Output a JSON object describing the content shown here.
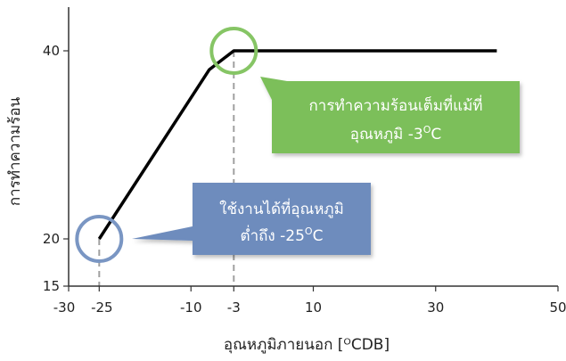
{
  "chart_data": {
    "type": "line",
    "title": "",
    "xlabel": "อุณหภูมิภายนอก [ᴼCDB]",
    "ylabel": "การทำความร้อน",
    "xlim": [
      -30,
      50
    ],
    "ylim": [
      15,
      45
    ],
    "x_ticks": [
      "-30",
      "-25",
      "-10",
      "-3",
      "10",
      "30",
      "50"
    ],
    "y_ticks": [
      "15",
      "20",
      "40"
    ],
    "grid": false,
    "series": [
      {
        "name": "",
        "color": "#000000",
        "points": [
          [
            -25,
            20
          ],
          [
            -7,
            38
          ],
          [
            -3,
            40
          ],
          [
            40,
            40
          ]
        ]
      }
    ],
    "reference_lines": [
      {
        "x": -25,
        "y": 20
      },
      {
        "x": -3,
        "y": 40
      }
    ],
    "annotations": [
      {
        "x": -25,
        "y": 20,
        "line1": "ใช้งานได้ที่อุณหภูมิ",
        "line2": "ต่ำถึง -25",
        "sup": "O",
        "unit": "C",
        "color": "#6e8cbd",
        "circle_color": "#7a96c3"
      },
      {
        "x": -3,
        "y": 40,
        "line1": "การทำความร้อนเต็มที่แม้ที่",
        "line2": "อุณหภูมิ -3",
        "sup": "O",
        "unit": "C",
        "color": "#7cbf5a",
        "circle_color": "#86c565"
      }
    ]
  }
}
